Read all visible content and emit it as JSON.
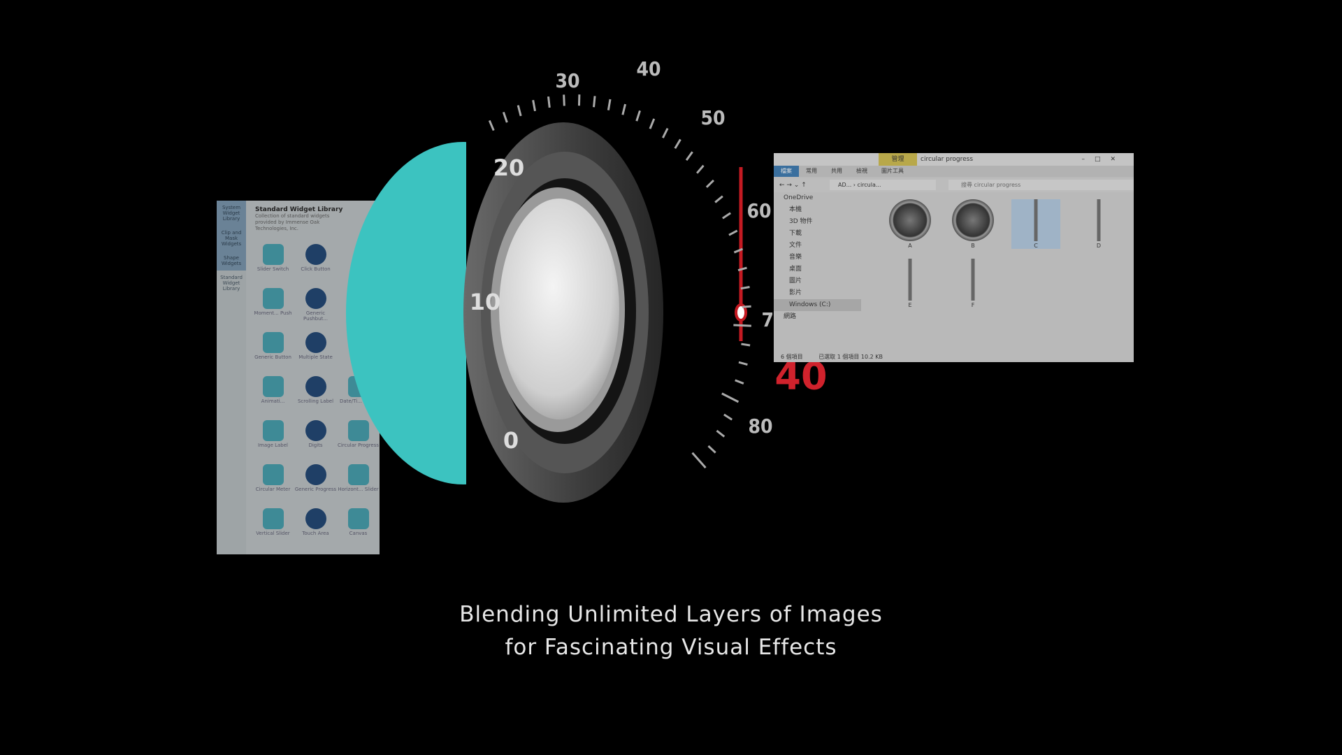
{
  "widget_library": {
    "sidebar": [
      "System Widget Library",
      "Clip and Mask Widgets",
      "Shape Widgets",
      "Standard Widget Library"
    ],
    "title": "Standard Widget Library",
    "subtitle": "Collection of standard widgets provided by Immense Oak Technologies, Inc.",
    "rows": [
      [
        "Slider Switch",
        "Click Button"
      ],
      [
        "Moment... Push",
        "Generic Pushbut..."
      ],
      [
        "Generic Button",
        "Multiple State"
      ],
      [
        "Animati...",
        "Scrolling Label",
        "Date/Ti... Label"
      ],
      [
        "Image Label",
        "Digits",
        "Circular Progress"
      ],
      [
        "Circular Meter",
        "Generic Progress",
        "Horizont... Slider"
      ],
      [
        "Vertical Slider",
        "Touch Area",
        "Canvas"
      ]
    ]
  },
  "gauge": {
    "outer_labels": [
      30,
      40,
      50,
      60,
      70,
      80
    ],
    "inner_labels": [
      20,
      10,
      0
    ],
    "readout": 40
  },
  "explorer": {
    "context_tab": "管理",
    "title": "circular progress",
    "ribbon": [
      "檔案",
      "常用",
      "共用",
      "檢視",
      "圖片工具"
    ],
    "address": "AD... › circula...",
    "search": "搜尋 circular progress",
    "nav": [
      "OneDrive",
      "本機",
      "3D 物件",
      "下載",
      "文件",
      "音樂",
      "桌面",
      "圖片",
      "影片",
      "Windows (C:)",
      "網路"
    ],
    "files": [
      "A",
      "B",
      "C",
      "D",
      "E",
      "F"
    ],
    "status_count": "6 個項目",
    "status_selected": "已選取 1 個項目 10.2 KB"
  },
  "caption": [
    "Blending Unlimited Layers of Images",
    "for Fascinating Visual Effects"
  ]
}
